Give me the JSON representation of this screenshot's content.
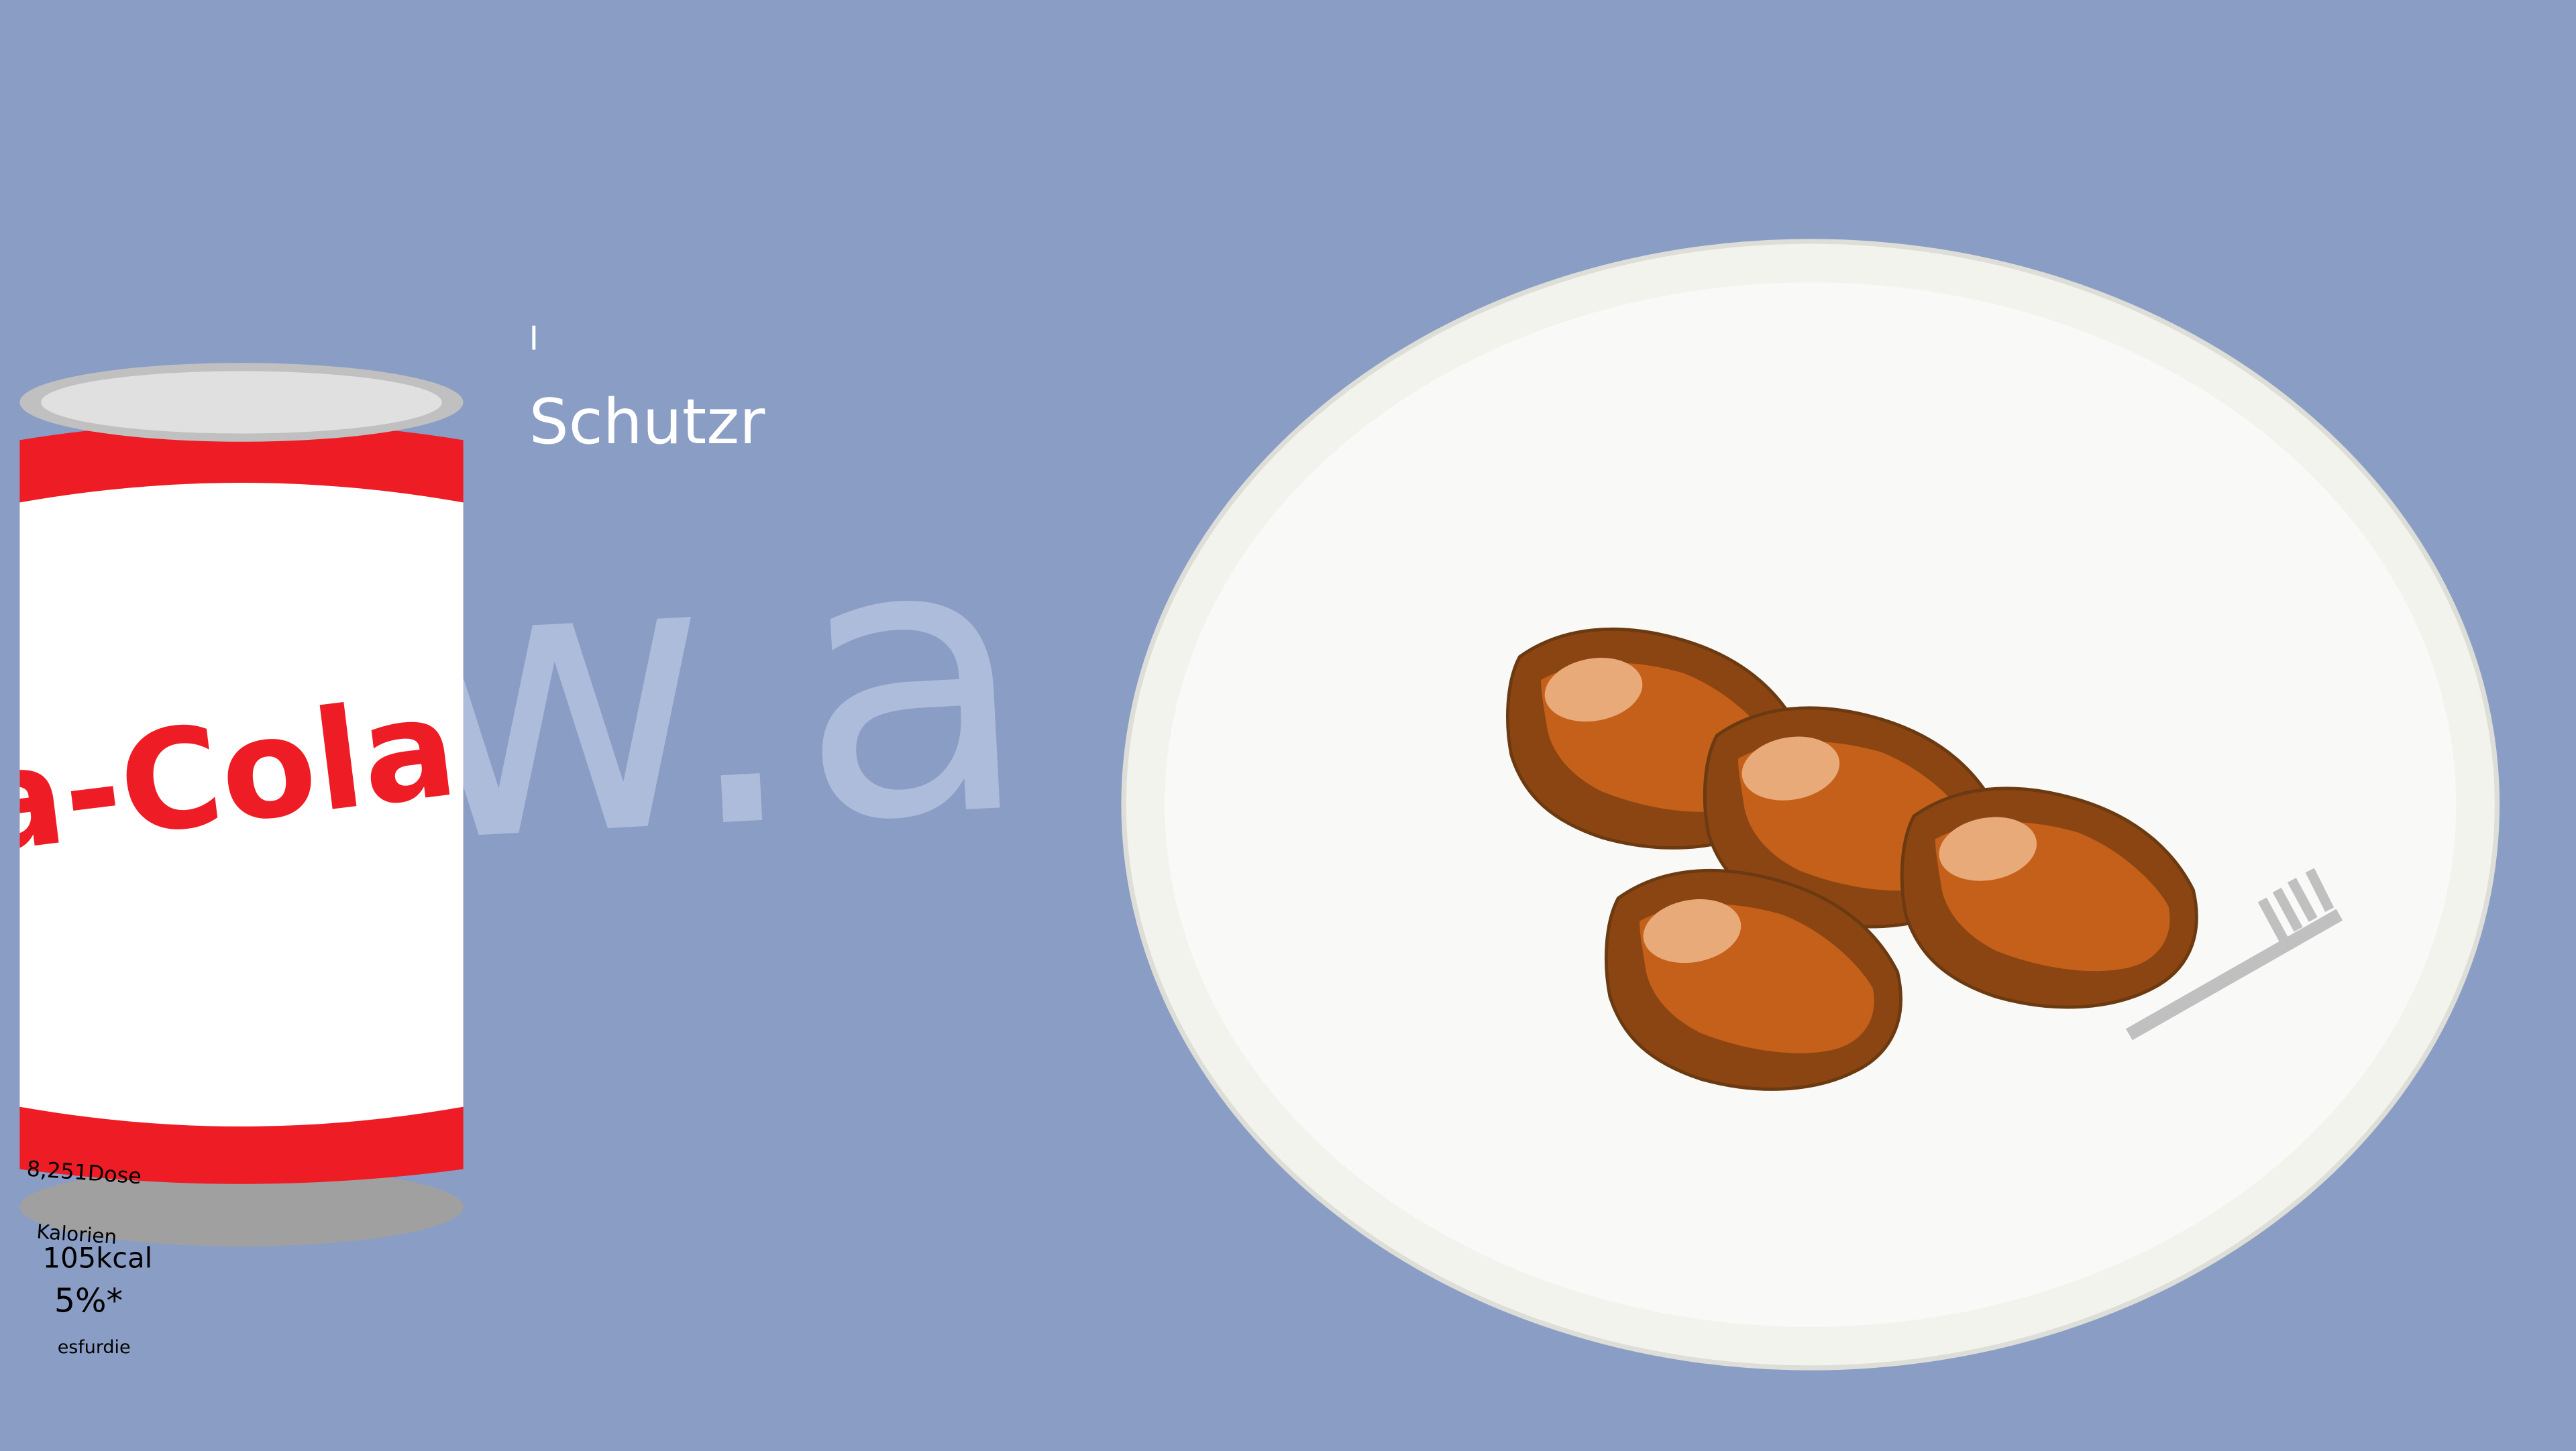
{
  "scene": {
    "background_color": "#8a9dc4",
    "watermark_text": "w.a",
    "headline": {
      "mark": "I",
      "text": "Schutzr"
    },
    "can": {
      "brand_text": "a-Cola",
      "brand_color": "#ee1c25",
      "nutrition": {
        "volume_text": "8,251Dose",
        "partial_label": "Kalorien",
        "energy_text": "105kcal",
        "percent_text": "5%*",
        "footnote_text": "esfurdie"
      }
    },
    "plate": {
      "rim_color": "#f3f3ee",
      "inner_color": "#f9f9f7",
      "food_item_count": 4,
      "food_colors": {
        "outer": "#8b4513",
        "inner": "#c4601a",
        "highlight": "#e8aa78"
      },
      "utensil": "fork-icon"
    }
  }
}
